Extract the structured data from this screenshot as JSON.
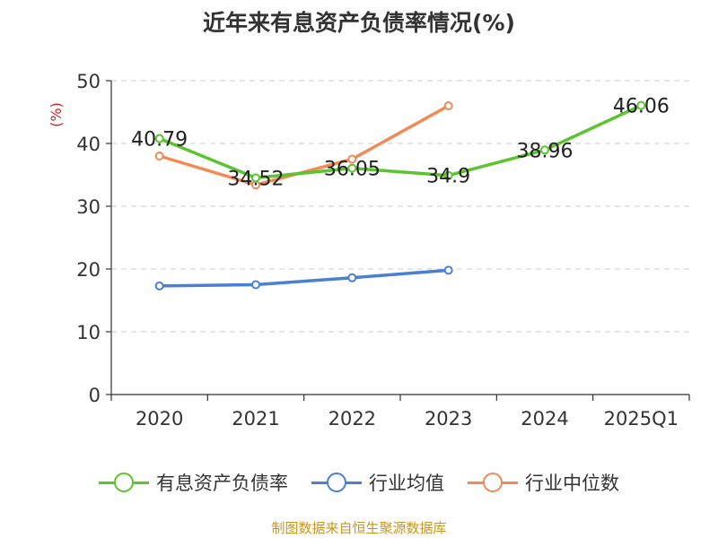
{
  "chart_data": {
    "type": "line",
    "title": "近年来有息资产负债率情况(%)",
    "ylabel": "(%)",
    "categories": [
      "2020",
      "2021",
      "2022",
      "2023",
      "2024",
      "2025Q1"
    ],
    "ylim": [
      0,
      50
    ],
    "yticks": [
      0,
      10,
      20,
      30,
      40,
      50
    ],
    "grid": true,
    "legend_position": "bottom",
    "series": [
      {
        "name": "有息资产负债率",
        "color": "#5cc42e",
        "values": [
          40.79,
          34.52,
          36.05,
          34.9,
          38.96,
          46.06
        ],
        "show_labels": true
      },
      {
        "name": "行业均值",
        "color": "#4a7fd6",
        "values": [
          17.3,
          17.5,
          18.6,
          19.8,
          null,
          null
        ],
        "show_labels": false
      },
      {
        "name": "行业中位数",
        "color": "#f28a55",
        "values": [
          38.0,
          33.4,
          37.5,
          46.0,
          null,
          null
        ],
        "show_labels": false
      }
    ]
  },
  "source_note": "制图数据来自恒生聚源数据库"
}
